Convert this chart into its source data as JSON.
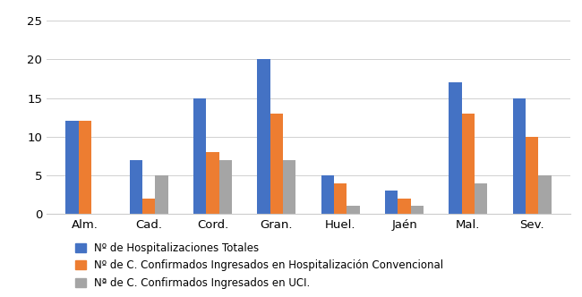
{
  "categories": [
    "Alm.",
    "Cad.",
    "Cord.",
    "Gran.",
    "Huel.",
    "Jaén",
    "Mal.",
    "Sev."
  ],
  "series": [
    {
      "label": "Nº de Hospitalizaciones Totales",
      "values": [
        12,
        7,
        15,
        20,
        5,
        3,
        17,
        15
      ],
      "color": "#4472C4"
    },
    {
      "label": "Nº de C. Confirmados Ingresados en Hospitalización Convencional",
      "values": [
        12,
        2,
        8,
        13,
        4,
        2,
        13,
        10
      ],
      "color": "#ED7D31"
    },
    {
      "label": "Nª de C. Confirmados Ingresados en UCI.",
      "values": [
        0,
        5,
        7,
        7,
        1,
        1,
        4,
        5
      ],
      "color": "#A5A5A5"
    }
  ],
  "ylim": [
    0,
    25
  ],
  "yticks": [
    0,
    5,
    10,
    15,
    20,
    25
  ],
  "background_color": "#FFFFFF",
  "bar_width": 0.2,
  "grid_color": "#D0D0D0",
  "legend_fontsize": 8.5,
  "tick_fontsize": 9.5
}
